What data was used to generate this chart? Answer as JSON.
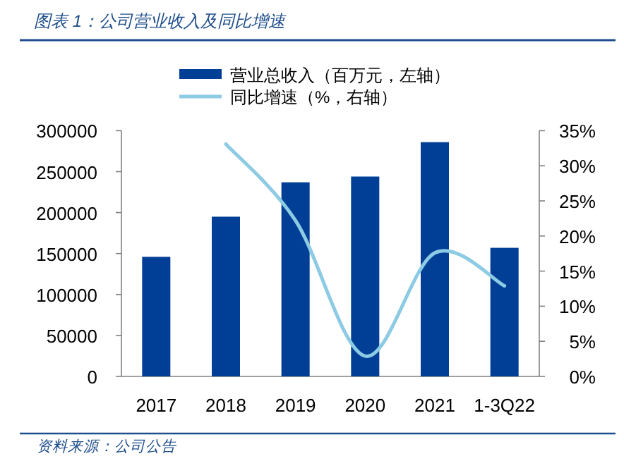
{
  "chart_data": {
    "type": "bar",
    "title": "图表 1：公司营业收入及同比增速",
    "categories": [
      "2017",
      "2018",
      "2019",
      "2020",
      "2021",
      "1-3Q22"
    ],
    "series": [
      {
        "name": "营业总收入（百万元，左轴）",
        "color": "#003f95",
        "values": [
          146000,
          195000,
          237000,
          244000,
          286000,
          157000
        ]
      },
      {
        "name": "同比增速（%，右轴）",
        "type": "line",
        "axis": "y2",
        "color": "#8ccbe3",
        "values": [
          null,
          33.1,
          22.2,
          2.9,
          17.6,
          12.9
        ]
      }
    ],
    "ylim": [
      0,
      300000
    ],
    "yticks": [
      0,
      50000,
      100000,
      150000,
      200000,
      250000,
      300000
    ],
    "y2lim": [
      0,
      35
    ],
    "y2ticks": [
      {
        "value": 0,
        "label": "0%"
      },
      {
        "value": 5,
        "label": "5%"
      },
      {
        "value": 10,
        "label": "10%"
      },
      {
        "value": 15,
        "label": "15%"
      },
      {
        "value": 20,
        "label": "20%"
      },
      {
        "value": 25,
        "label": "25%"
      },
      {
        "value": 30,
        "label": "30%"
      },
      {
        "value": 35,
        "label": "35%"
      }
    ],
    "legend": "top",
    "annotations": [
      "资料来源：公司公告"
    ]
  }
}
